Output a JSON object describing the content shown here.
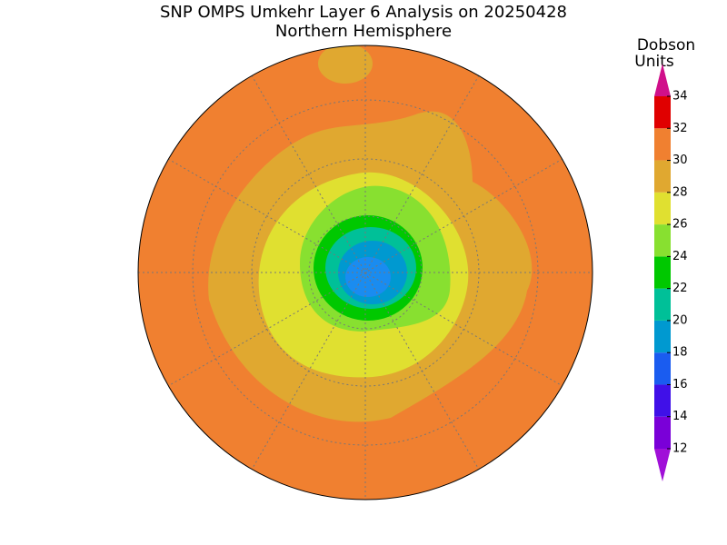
{
  "title": "SNP OMPS Umkehr Layer 6 Analysis on 20250428",
  "subtitle": "Northern Hemisphere",
  "colorbar": {
    "label": [
      "Dobson",
      "Units"
    ],
    "ticks": [
      12,
      14,
      16,
      18,
      20,
      22,
      24,
      26,
      28,
      30,
      32,
      34
    ],
    "colors": [
      "#7a00d8",
      "#4010e8",
      "#1a5cf0",
      "#0099d0",
      "#00c098",
      "#00c800",
      "#88e030",
      "#e0e030",
      "#e0a830",
      "#f08030",
      "#e00000"
    ],
    "under_color": "#a010d8",
    "over_color": "#d0108a"
  }
}
